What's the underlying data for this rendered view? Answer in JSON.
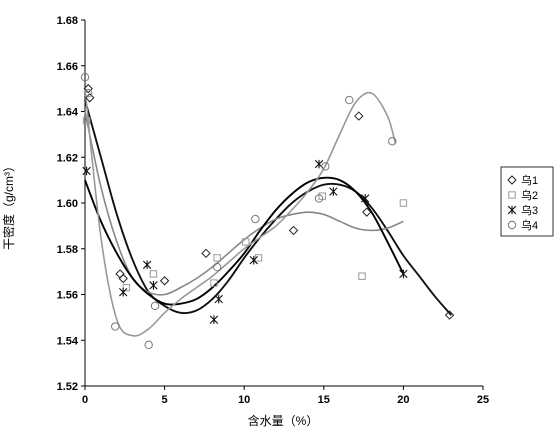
{
  "chart_data": {
    "type": "scatter",
    "title": "",
    "xlabel": "含水量（%）",
    "ylabel": "干密度（g/cm³）",
    "xlim": [
      0,
      25
    ],
    "ylim": [
      1.52,
      1.68
    ],
    "xticks": [
      0,
      5,
      10,
      15,
      20,
      25
    ],
    "xtick_labels": [
      "0",
      "5",
      "10",
      "15",
      "20",
      "25"
    ],
    "yticks": [
      1.52,
      1.54,
      1.56,
      1.58,
      1.6,
      1.62,
      1.64,
      1.66,
      1.68
    ],
    "ytick_labels": [
      "1.52",
      "1.54",
      "1.56",
      "1.58",
      "1.60",
      "1.62",
      "1.64",
      "1.66",
      "1.68"
    ],
    "grid": false,
    "legend_position": "right",
    "series": [
      {
        "name": "乌1",
        "marker": "diamond",
        "color": "#222222",
        "line_color": "#111111",
        "x": [
          0.2,
          0.3,
          2.2,
          2.4,
          5.0,
          7.6,
          13.1,
          17.2,
          17.7,
          22.9
        ],
        "y": [
          1.65,
          1.646,
          1.569,
          1.567,
          1.566,
          1.578,
          1.588,
          1.638,
          1.596,
          1.551
        ],
        "fit_x": [
          0,
          1,
          2,
          3,
          4,
          5,
          6,
          7,
          8,
          9,
          10,
          11,
          12,
          13,
          14,
          15,
          16,
          17,
          18,
          19,
          20,
          21,
          22,
          23
        ],
        "fit_y": [
          1.645,
          1.62,
          1.595,
          1.575,
          1.561,
          1.555,
          1.552,
          1.553,
          1.558,
          1.566,
          1.576,
          1.585,
          1.593,
          1.6,
          1.605,
          1.608,
          1.608,
          1.605,
          1.598,
          1.588,
          1.577,
          1.568,
          1.559,
          1.551
        ]
      },
      {
        "name": "乌2",
        "marker": "square",
        "color": "#999999",
        "line_color": "#888888",
        "x": [
          0.1,
          2.6,
          4.3,
          8.1,
          8.3,
          10.1,
          10.9,
          14.9,
          17.4,
          20.0
        ],
        "y": [
          1.636,
          1.563,
          1.569,
          1.565,
          1.576,
          1.583,
          1.576,
          1.603,
          1.568,
          1.6
        ],
        "fit_x": [
          0,
          1,
          2,
          3,
          4,
          5,
          6,
          7,
          8,
          9,
          10,
          11,
          12,
          13,
          14,
          15,
          16,
          17,
          18,
          19,
          20
        ],
        "fit_y": [
          1.64,
          1.607,
          1.583,
          1.567,
          1.561,
          1.56,
          1.563,
          1.567,
          1.572,
          1.578,
          1.584,
          1.589,
          1.593,
          1.595,
          1.596,
          1.595,
          1.592,
          1.589,
          1.588,
          1.589,
          1.592
        ]
      },
      {
        "name": "乌3",
        "marker": "star",
        "color": "#111111",
        "line_color": "#000000",
        "x": [
          0.1,
          2.4,
          3.9,
          4.3,
          8.1,
          8.4,
          10.6,
          14.7,
          15.6,
          17.6,
          20.0
        ],
        "y": [
          1.614,
          1.561,
          1.573,
          1.564,
          1.549,
          1.558,
          1.575,
          1.617,
          1.605,
          1.602,
          1.569
        ],
        "fit_x": [
          0,
          1,
          2,
          3,
          4,
          5,
          6,
          7,
          8,
          9,
          10,
          11,
          12,
          13,
          14,
          15,
          16,
          17,
          18,
          19,
          20
        ],
        "fit_y": [
          1.61,
          1.592,
          1.578,
          1.567,
          1.56,
          1.556,
          1.556,
          1.558,
          1.563,
          1.57,
          1.578,
          1.588,
          1.597,
          1.604,
          1.609,
          1.611,
          1.61,
          1.605,
          1.596,
          1.583,
          1.569
        ]
      },
      {
        "name": "乌4",
        "marker": "circle",
        "color": "#777777",
        "line_color": "#999999",
        "x": [
          0.0,
          0.2,
          1.9,
          4.0,
          4.4,
          8.3,
          10.7,
          14.7,
          15.1,
          16.6,
          19.3
        ],
        "y": [
          1.655,
          1.648,
          1.546,
          1.538,
          1.555,
          1.572,
          1.593,
          1.602,
          1.616,
          1.645,
          1.627
        ],
        "fit_x": [
          0,
          1,
          2,
          3,
          4,
          5,
          6,
          7,
          8,
          9,
          10,
          11,
          12,
          13,
          14,
          15,
          16,
          17,
          18,
          19,
          19.5
        ],
        "fit_y": [
          1.65,
          1.585,
          1.549,
          1.542,
          1.545,
          1.552,
          1.558,
          1.563,
          1.568,
          1.574,
          1.58,
          1.585,
          1.59,
          1.597,
          1.605,
          1.615,
          1.63,
          1.644,
          1.648,
          1.638,
          1.626
        ]
      }
    ]
  }
}
